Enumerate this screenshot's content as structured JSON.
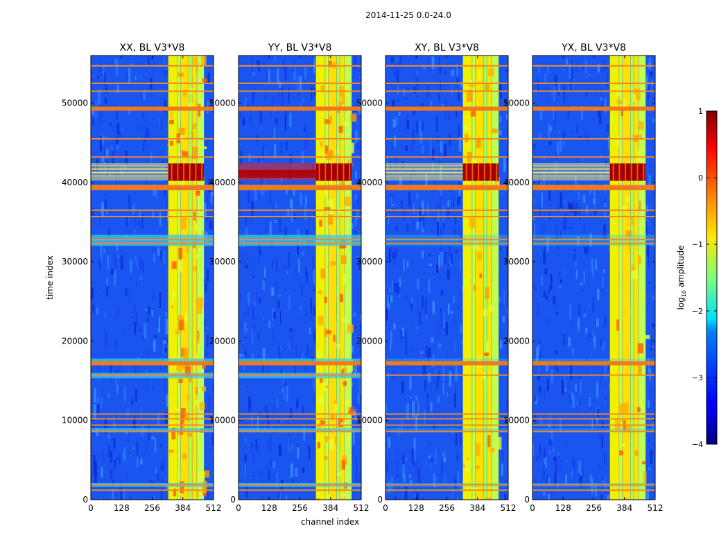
{
  "figure_title": "2014-11-25 0.0-24.0",
  "chart_data": {
    "type": "heatmap",
    "title": "2014-11-25 0.0-24.0",
    "xlabel": "channel index",
    "ylabel": "time index",
    "xlim": [
      0,
      512
    ],
    "ylim": [
      0,
      56000
    ],
    "xticks": [
      0,
      128,
      256,
      384,
      512
    ],
    "xtick_labels": [
      "0",
      "128",
      "256",
      "384",
      "512"
    ],
    "yticks": [
      0,
      10000,
      20000,
      30000,
      40000,
      50000
    ],
    "ytick_labels": [
      "0",
      "10000",
      "20000",
      "30000",
      "40000",
      "50000"
    ],
    "colormap": "jet",
    "colorbar": {
      "label": "log10 amplitude",
      "label_main": "log",
      "label_sub": "10",
      "label_rest": " amplitude",
      "range": [
        -4,
        1
      ],
      "ticks": [
        1,
        0,
        -1,
        -2,
        -3,
        -4
      ],
      "tick_labels": [
        "1",
        "0",
        "−1",
        "−2",
        "−3",
        "−4"
      ]
    },
    "panels": [
      {
        "title": "XX, BL V3*V8",
        "pol": "XX"
      },
      {
        "title": "YY, BL V3*V8",
        "pol": "YY"
      },
      {
        "title": "XY, BL V3*V8",
        "pol": "XY"
      },
      {
        "title": "YX, BL V3*V8",
        "pol": "YX"
      }
    ],
    "rfi_bands_channel": [
      [
        323,
        361
      ],
      [
        362,
        374
      ],
      [
        375,
        409
      ],
      [
        410,
        422
      ],
      [
        423,
        442
      ],
      [
        443,
        472
      ]
    ],
    "flagged_time_rows": [
      1200,
      1900,
      8600,
      9400,
      10200,
      10800,
      15700,
      17200,
      32300,
      32800,
      35700,
      36500,
      39100,
      39600,
      43200,
      45500,
      49200,
      51500,
      52500,
      54700
    ],
    "bright_time_range": [
      40200,
      42400
    ]
  }
}
